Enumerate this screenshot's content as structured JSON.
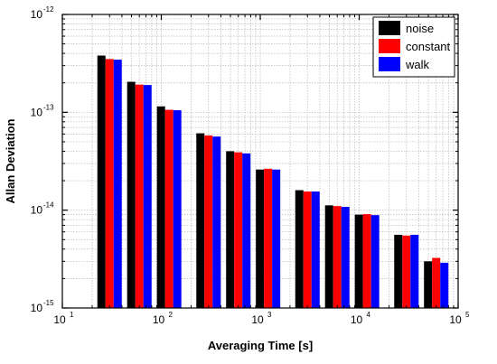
{
  "chart_data": {
    "type": "bar",
    "xlabel": "Averaging Time [s]",
    "ylabel": "Allan Deviation",
    "xscale": "log",
    "yscale": "log",
    "xlim": [
      10,
      100000
    ],
    "ylim": [
      1e-15,
      1e-12
    ],
    "x_ticks": [
      {
        "value": 10,
        "base": "10",
        "exp": "1"
      },
      {
        "value": 100,
        "base": "10",
        "exp": "2"
      },
      {
        "value": 1000,
        "base": "10",
        "exp": "3"
      },
      {
        "value": 10000,
        "base": "10",
        "exp": "4"
      },
      {
        "value": 100000,
        "base": "10",
        "exp": "5"
      }
    ],
    "y_ticks": [
      {
        "value": 1e-15,
        "base": "10",
        "exp": "-15"
      },
      {
        "value": 1e-14,
        "base": "10",
        "exp": "-14"
      },
      {
        "value": 1e-13,
        "base": "10",
        "exp": "-13"
      },
      {
        "value": 1e-12,
        "base": "10",
        "exp": "-12"
      }
    ],
    "grid": true,
    "legend_position": "top-right",
    "x": [
      30,
      60,
      120,
      300,
      600,
      1200,
      3000,
      6000,
      12000,
      30000,
      60000
    ],
    "series": [
      {
        "name": "noise",
        "color": "#000000",
        "values": [
          3.8e-13,
          2.05e-13,
          1.15e-13,
          6.1e-14,
          4e-14,
          2.6e-14,
          1.6e-14,
          1.12e-14,
          9e-15,
          5.6e-15,
          3e-15
        ]
      },
      {
        "name": "constant",
        "color": "#ff0000",
        "values": [
          3.5e-13,
          1.92e-13,
          1.06e-13,
          5.8e-14,
          3.9e-14,
          2.65e-14,
          1.55e-14,
          1.1e-14,
          9.1e-15,
          5.5e-15,
          3.25e-15
        ]
      },
      {
        "name": "walk",
        "color": "#0000ff",
        "values": [
          3.45e-13,
          1.9e-13,
          1.05e-13,
          5.65e-14,
          3.8e-14,
          2.6e-14,
          1.55e-14,
          1.08e-14,
          8.9e-15,
          5.6e-15,
          2.9e-15
        ]
      }
    ]
  }
}
